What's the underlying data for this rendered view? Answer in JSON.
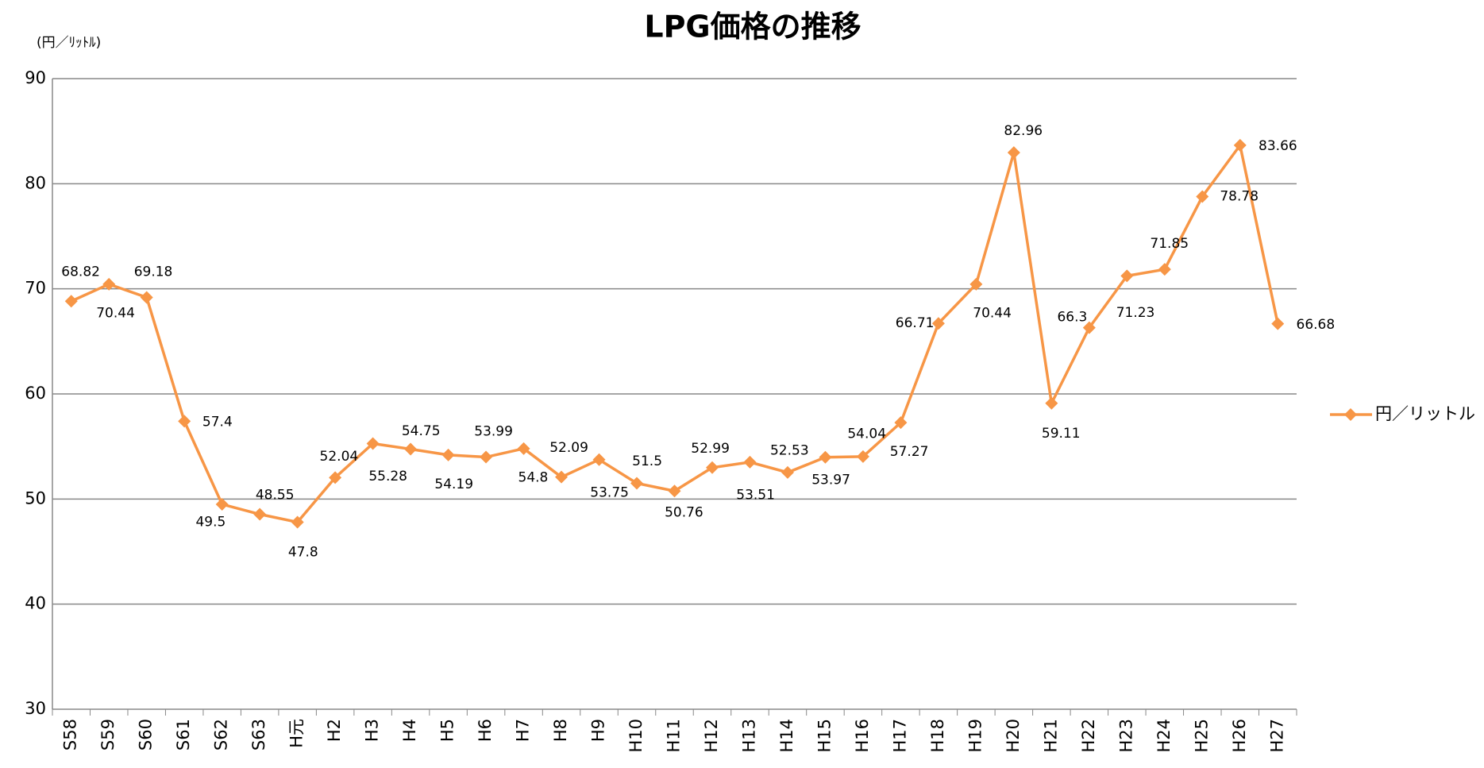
{
  "chart_data": {
    "type": "line",
    "title": "LPG価格の推移",
    "y_axis_label": "(円／ﾘｯﾄﾙ)",
    "categories": [
      "S58",
      "S59",
      "S60",
      "S61",
      "S62",
      "S63",
      "H元",
      "H2",
      "H3",
      "H4",
      "H5",
      "H6",
      "H7",
      "H8",
      "H9",
      "H10",
      "H11",
      "H12",
      "H13",
      "H14",
      "H15",
      "H16",
      "H17",
      "H18",
      "H19",
      "H20",
      "H21",
      "H22",
      "H23",
      "H24",
      "H25",
      "H26",
      "H27"
    ],
    "series": [
      {
        "name": "円／リットル",
        "color": "#f79646",
        "values": [
          68.82,
          70.44,
          69.18,
          57.4,
          49.5,
          48.55,
          47.8,
          52.04,
          55.28,
          54.75,
          54.19,
          53.99,
          54.8,
          52.09,
          53.75,
          51.5,
          50.76,
          52.99,
          53.51,
          52.53,
          53.97,
          54.04,
          57.27,
          66.71,
          70.44,
          82.96,
          59.11,
          66.3,
          71.23,
          71.85,
          78.78,
          83.66,
          66.68
        ]
      }
    ],
    "ylim": [
      30,
      90
    ],
    "yticks": [
      30,
      40,
      50,
      60,
      70,
      80,
      90
    ],
    "grid": true,
    "legend": "right"
  }
}
